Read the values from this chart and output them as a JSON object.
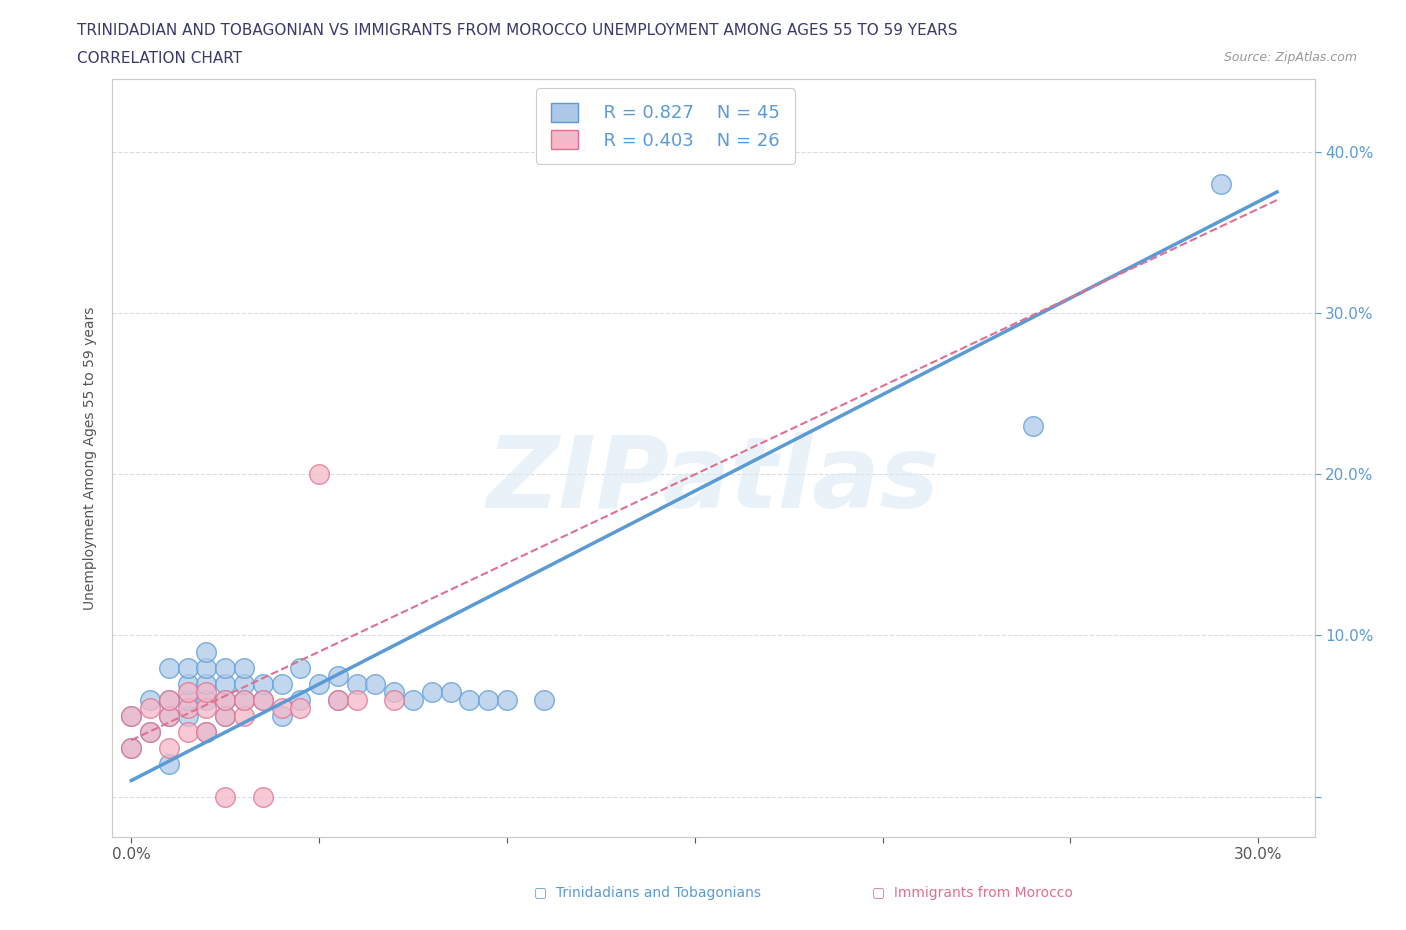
{
  "title_line1": "TRINIDADIAN AND TOBAGONIAN VS IMMIGRANTS FROM MOROCCO UNEMPLOYMENT AMONG AGES 55 TO 59 YEARS",
  "title_line2": "CORRELATION CHART",
  "source_text": "Source: ZipAtlas.com",
  "ylabel": "Unemployment Among Ages 55 to 59 years",
  "xlim": [
    -0.005,
    0.315
  ],
  "ylim": [
    -0.025,
    0.445
  ],
  "x_ticks": [
    0.0,
    0.05,
    0.1,
    0.15,
    0.2,
    0.25,
    0.3
  ],
  "y_ticks": [
    0.0,
    0.1,
    0.2,
    0.3,
    0.4
  ],
  "legend_r1": "R = 0.827",
  "legend_n1": "N = 45",
  "legend_r2": "R = 0.403",
  "legend_n2": "N = 26",
  "color_blue_fill": "#aec9e8",
  "color_blue_edge": "#5b9bd5",
  "color_pink_fill": "#f4b8c8",
  "color_pink_edge": "#e07090",
  "color_line_blue": "#5b9bd5",
  "color_line_pink": "#e07090",
  "title_color": "#3a3a6a",
  "watermark": "ZIPatlas",
  "blue_scatter": [
    [
      0.0,
      0.03
    ],
    [
      0.0,
      0.05
    ],
    [
      0.005,
      0.04
    ],
    [
      0.005,
      0.06
    ],
    [
      0.01,
      0.02
    ],
    [
      0.01,
      0.05
    ],
    [
      0.01,
      0.06
    ],
    [
      0.01,
      0.08
    ],
    [
      0.015,
      0.05
    ],
    [
      0.015,
      0.06
    ],
    [
      0.015,
      0.07
    ],
    [
      0.015,
      0.08
    ],
    [
      0.02,
      0.04
    ],
    [
      0.02,
      0.06
    ],
    [
      0.02,
      0.07
    ],
    [
      0.02,
      0.08
    ],
    [
      0.02,
      0.09
    ],
    [
      0.025,
      0.05
    ],
    [
      0.025,
      0.06
    ],
    [
      0.025,
      0.07
    ],
    [
      0.025,
      0.08
    ],
    [
      0.03,
      0.06
    ],
    [
      0.03,
      0.07
    ],
    [
      0.03,
      0.08
    ],
    [
      0.035,
      0.06
    ],
    [
      0.035,
      0.07
    ],
    [
      0.04,
      0.05
    ],
    [
      0.04,
      0.07
    ],
    [
      0.045,
      0.06
    ],
    [
      0.045,
      0.08
    ],
    [
      0.05,
      0.07
    ],
    [
      0.055,
      0.06
    ],
    [
      0.055,
      0.075
    ],
    [
      0.06,
      0.07
    ],
    [
      0.065,
      0.07
    ],
    [
      0.07,
      0.065
    ],
    [
      0.075,
      0.06
    ],
    [
      0.08,
      0.065
    ],
    [
      0.085,
      0.065
    ],
    [
      0.09,
      0.06
    ],
    [
      0.095,
      0.06
    ],
    [
      0.1,
      0.06
    ],
    [
      0.11,
      0.06
    ],
    [
      0.24,
      0.23
    ],
    [
      0.29,
      0.38
    ]
  ],
  "pink_scatter": [
    [
      0.0,
      0.03
    ],
    [
      0.0,
      0.05
    ],
    [
      0.005,
      0.04
    ],
    [
      0.005,
      0.055
    ],
    [
      0.01,
      0.03
    ],
    [
      0.01,
      0.05
    ],
    [
      0.01,
      0.06
    ],
    [
      0.015,
      0.04
    ],
    [
      0.015,
      0.055
    ],
    [
      0.015,
      0.065
    ],
    [
      0.02,
      0.04
    ],
    [
      0.02,
      0.055
    ],
    [
      0.02,
      0.065
    ],
    [
      0.025,
      0.05
    ],
    [
      0.025,
      0.06
    ],
    [
      0.025,
      0.0
    ],
    [
      0.03,
      0.05
    ],
    [
      0.03,
      0.06
    ],
    [
      0.035,
      0.0
    ],
    [
      0.035,
      0.06
    ],
    [
      0.04,
      0.055
    ],
    [
      0.045,
      0.055
    ],
    [
      0.05,
      0.2
    ],
    [
      0.055,
      0.06
    ],
    [
      0.06,
      0.06
    ],
    [
      0.07,
      0.06
    ]
  ],
  "blue_line_x": [
    0.0,
    0.305
  ],
  "blue_line_y": [
    0.01,
    0.375
  ],
  "pink_line_x": [
    0.0,
    0.305
  ],
  "pink_line_y": [
    0.035,
    0.37
  ]
}
